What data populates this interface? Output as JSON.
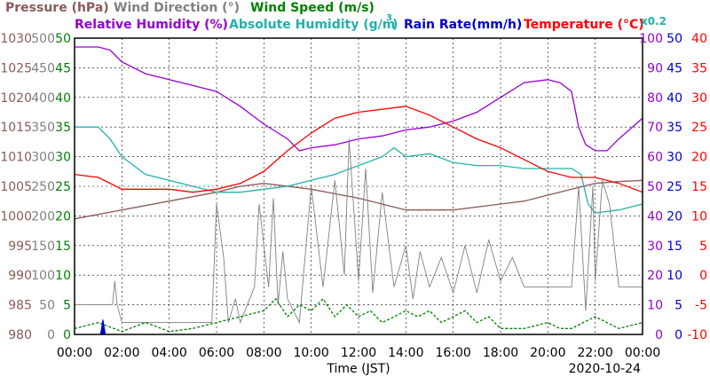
{
  "header": {
    "row1": [
      {
        "text": "Pressure (hPa)",
        "color": "#8B5A5A"
      },
      {
        "text": "Wind Direction (°)",
        "color": "#808080"
      },
      {
        "text": "Wind Speed (m/s)",
        "color": "#008000"
      }
    ],
    "row2": [
      {
        "text": "Relative Humidity (%)",
        "color": "#9400D3"
      },
      {
        "text": "Absolute Humidity (g/m",
        "color": "#20B2AA"
      },
      {
        "text": "Rain Rate(mm/h)",
        "color": "#0000CD"
      },
      {
        "text": "Temperature (°C)",
        "color": "#FF0000"
      }
    ],
    "abs_hum_sup": "3",
    "abs_hum_close": ")",
    "rain_factor": "x0.2"
  },
  "chart_data": {
    "type": "line",
    "xlabel": "Time (JST)",
    "date": "2020-10-24",
    "x_ticks": [
      "00:00",
      "02:00",
      "04:00",
      "06:00",
      "08:00",
      "10:00",
      "12:00",
      "14:00",
      "16:00",
      "18:00",
      "20:00",
      "22:00",
      "00:00"
    ],
    "xlim": [
      0,
      24
    ],
    "axes": [
      {
        "name": "Pressure (hPa)",
        "color": "#8B5A5A",
        "ylim": [
          980,
          1030
        ],
        "ticks": [
          "980",
          "985",
          "990",
          "995",
          "1000",
          "1005",
          "1010",
          "1015",
          "1020",
          "1025",
          "1030"
        ]
      },
      {
        "name": "Wind Direction (°)",
        "color": "#808080",
        "ylim": [
          0,
          500
        ],
        "ticks": [
          "0",
          "50",
          "100",
          "150",
          "200",
          "250",
          "300",
          "350",
          "400",
          "450",
          "500"
        ]
      },
      {
        "name": "Wind Speed (m/s)",
        "color": "#008000",
        "ylim": [
          0,
          50
        ],
        "ticks": [
          "0",
          "5",
          "10",
          "15",
          "20",
          "25",
          "30",
          "35",
          "40",
          "45",
          "50"
        ]
      },
      {
        "name": "Relative Humidity (%)",
        "color": "#9400D3",
        "ylim": [
          0,
          100
        ],
        "ticks": [
          "0",
          "10",
          "20",
          "30",
          "40",
          "50",
          "60",
          "70",
          "80",
          "90",
          "100"
        ]
      },
      {
        "name": "Rain Rate(mm/h)",
        "color": "#0000CD",
        "ylim": [
          0,
          50
        ],
        "ticks": [
          "0",
          "5",
          "10",
          "15",
          "20",
          "25",
          "30",
          "35",
          "40",
          "45",
          "50"
        ]
      },
      {
        "name": "Temperature (°C)",
        "color": "#FF0000",
        "ylim": [
          -10,
          40
        ],
        "ticks": [
          "-10",
          "-5",
          "0",
          "5",
          "10",
          "15",
          "20",
          "25",
          "30",
          "35",
          "40"
        ]
      }
    ],
    "series": [
      {
        "name": "Pressure (hPa)",
        "color": "#8B5A5A",
        "axis": 0,
        "x": [
          0,
          2,
          4,
          6,
          7,
          8,
          10,
          12,
          14,
          16,
          18,
          19,
          20,
          21,
          22,
          23,
          24
        ],
        "y": [
          999.5,
          1001,
          1002.5,
          1004,
          1005,
          1005.5,
          1004.5,
          1003,
          1001,
          1001,
          1002,
          1002.5,
          1003.5,
          1004.5,
          1005.5,
          1005.8,
          1006
        ]
      },
      {
        "name": "Relative Humidity (%)",
        "color": "#9400D3",
        "axis": 3,
        "x": [
          0,
          0.5,
          1,
          1.5,
          2,
          3,
          4,
          5,
          6,
          7,
          8,
          9,
          9.5,
          10,
          11,
          12,
          13,
          14,
          15,
          16,
          17,
          18,
          19,
          20,
          20.5,
          21,
          21.3,
          21.6,
          22,
          22.5,
          23,
          24
        ],
        "y": [
          97,
          97,
          97,
          96,
          92,
          88,
          86,
          84,
          82,
          77,
          71,
          66,
          62,
          63,
          64,
          66,
          67,
          69,
          70,
          72,
          75,
          80,
          85,
          86,
          85,
          82,
          70,
          64,
          62,
          62,
          66,
          73
        ]
      },
      {
        "name": "Absolute Humidity (g/m3)",
        "color": "#20B2AA",
        "axis": 2,
        "x": [
          0,
          1,
          1.5,
          2,
          3,
          4,
          5,
          6,
          7,
          8,
          9,
          10,
          11,
          12,
          13,
          13.5,
          14,
          15,
          16,
          17,
          18,
          19,
          20,
          21,
          21.4,
          21.7,
          22,
          23,
          24
        ],
        "y": [
          35,
          35,
          33,
          30,
          27,
          26,
          25,
          24,
          24,
          24.5,
          25,
          26,
          27,
          28.5,
          30,
          31.5,
          30,
          30.5,
          29,
          28.5,
          28.5,
          28,
          28,
          28,
          27,
          22,
          20.5,
          21,
          22
        ]
      },
      {
        "name": "Temperature (°C)",
        "color": "#FF0000",
        "axis": 5,
        "x": [
          0,
          1,
          2,
          3,
          4,
          5,
          6,
          7,
          8,
          9,
          10,
          11,
          12,
          13,
          14,
          15,
          16,
          17,
          18,
          19,
          20,
          21,
          22,
          23,
          24
        ],
        "y": [
          17,
          16.5,
          14.5,
          14.5,
          14.5,
          14,
          14.5,
          15.5,
          17.5,
          21,
          24,
          26.5,
          27.5,
          28,
          28.5,
          27,
          25,
          23,
          21.5,
          19.5,
          17.5,
          16.5,
          16.5,
          15.5,
          14
        ]
      },
      {
        "name": "Wind Direction (°)",
        "color": "#808080",
        "axis": 1,
        "x": [
          0,
          1.6,
          1.7,
          1.8,
          2,
          4,
          5.8,
          6,
          6.3,
          6.5,
          6.8,
          7,
          7.6,
          7.8,
          8.2,
          8.4,
          8.6,
          8.8,
          9,
          9.5,
          10,
          10.5,
          11,
          11.4,
          11.6,
          12,
          12.3,
          12.6,
          13,
          13.5,
          14,
          14.3,
          14.6,
          15,
          15.5,
          16,
          16.5,
          17,
          17.5,
          18,
          18.5,
          19,
          19.5,
          20,
          20.5,
          21,
          21.3,
          21.6,
          21.9,
          22,
          22.3,
          22.6,
          23,
          24
        ],
        "y": [
          50,
          50,
          90,
          50,
          20,
          20,
          20,
          220,
          130,
          20,
          60,
          20,
          80,
          220,
          80,
          230,
          50,
          140,
          60,
          20,
          250,
          80,
          260,
          100,
          330,
          90,
          280,
          70,
          240,
          80,
          150,
          60,
          140,
          80,
          130,
          70,
          150,
          70,
          160,
          90,
          130,
          80,
          80,
          80,
          80,
          80,
          250,
          40,
          250,
          90,
          260,
          220,
          80,
          80
        ]
      },
      {
        "name": "Wind Speed (m/s)",
        "color": "#008000",
        "axis": 2,
        "x": [
          0,
          1,
          2,
          3,
          4,
          5,
          6,
          7,
          8,
          8.5,
          9,
          9.5,
          10,
          10.5,
          11,
          11.5,
          12,
          12.5,
          13,
          13.5,
          14,
          14.5,
          15,
          15.5,
          16,
          16.5,
          17,
          17.5,
          18,
          19,
          20,
          20.5,
          21,
          21.5,
          22,
          23,
          24
        ],
        "y": [
          1,
          2,
          0.5,
          2,
          0.5,
          1,
          2,
          3,
          4,
          6,
          3,
          5,
          4,
          6,
          3,
          5,
          3,
          4,
          2,
          3,
          4,
          3,
          4,
          2,
          3,
          4,
          2,
          3,
          1,
          1,
          2,
          1,
          1,
          2,
          3,
          1,
          2
        ]
      },
      {
        "name": "Rain Rate(mm/h)",
        "color": "#0000CD",
        "axis": 4,
        "x": [
          1.1,
          1.2,
          1.3
        ],
        "y": [
          0,
          2.5,
          0
        ]
      }
    ]
  }
}
